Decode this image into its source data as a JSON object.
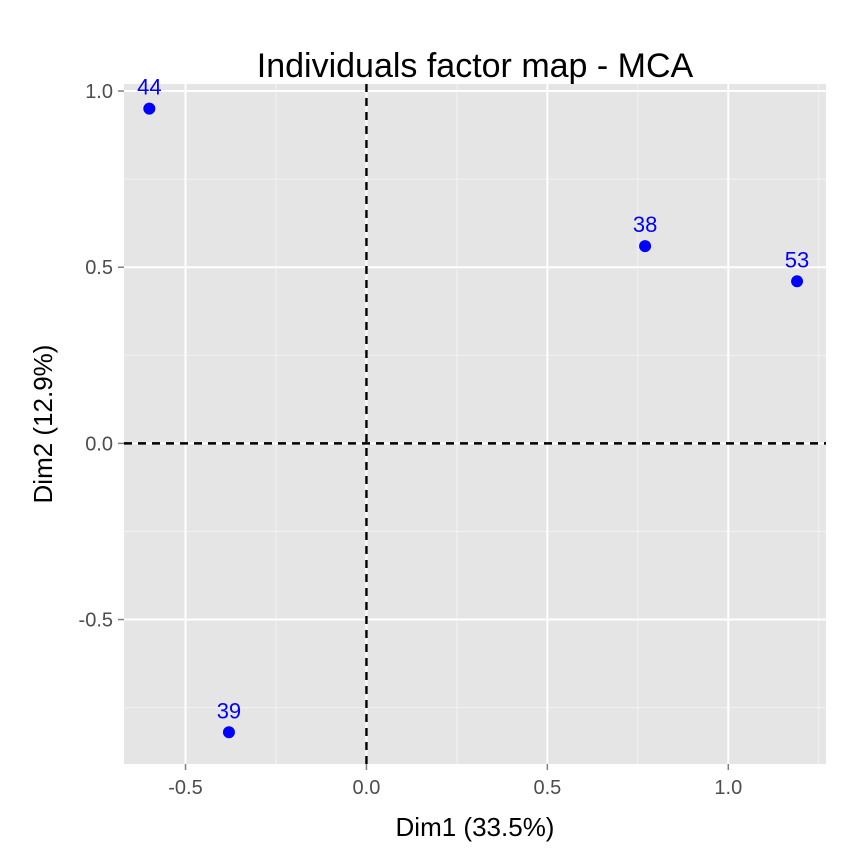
{
  "chart_data": {
    "type": "scatter",
    "title": "Individuals factor map - MCA",
    "xlabel": "Dim1 (33.5%)",
    "ylabel": "Dim2 (12.9%)",
    "xlim": [
      -0.67,
      1.27
    ],
    "ylim": [
      -0.91,
      1.02
    ],
    "x_ticks": [
      -0.5,
      0.0,
      0.5,
      1.0
    ],
    "x_tick_labels": [
      "-0.5",
      "0.0",
      "0.5",
      "1.0"
    ],
    "y_ticks": [
      -0.5,
      0.0,
      0.5,
      1.0
    ],
    "y_tick_labels": [
      "-0.5",
      "0.0",
      "0.5",
      "1.0"
    ],
    "grid": true,
    "reference_lines": {
      "x": 0,
      "y": 0,
      "style": "dashed"
    },
    "colors": {
      "points": "#0000ff",
      "panel": "#e5e5e5",
      "grid": "#ffffff",
      "reference": "#000000"
    },
    "points": [
      {
        "label": "44",
        "x": -0.6,
        "y": 0.95
      },
      {
        "label": "38",
        "x": 0.77,
        "y": 0.56
      },
      {
        "label": "53",
        "x": 1.19,
        "y": 0.46
      },
      {
        "label": "39",
        "x": -0.38,
        "y": -0.82
      }
    ]
  }
}
